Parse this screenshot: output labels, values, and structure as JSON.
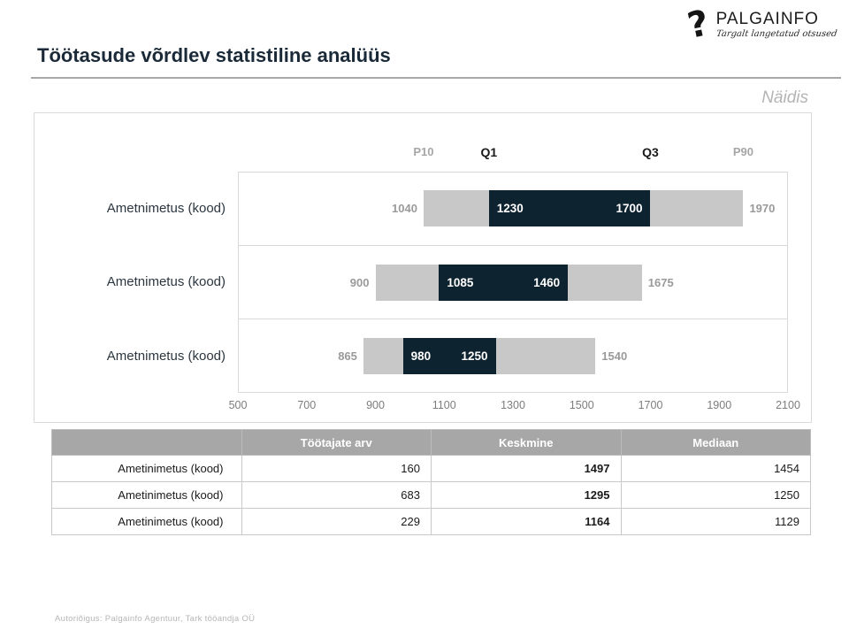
{
  "logo": {
    "name": "PALGAINFO",
    "tagline": "Targalt langetatud otsused"
  },
  "header": {
    "title": "Töötasude võrdlev statistiline analüüs"
  },
  "watermark": "Näidis",
  "chart_data": {
    "type": "bar",
    "variant": "horizontal percentile range bars (P10–Q1–Q3–P90)",
    "categories": [
      "Ametnimetus (kood)",
      "Ametnimetus (kood)",
      "Ametnimetus (kood)"
    ],
    "series": [
      {
        "name": "P10",
        "values": [
          1040,
          900,
          865
        ]
      },
      {
        "name": "Q1",
        "values": [
          1230,
          1085,
          980
        ]
      },
      {
        "name": "Q3",
        "values": [
          1700,
          1460,
          1250
        ]
      },
      {
        "name": "P90",
        "values": [
          1970,
          1675,
          1540
        ]
      }
    ],
    "header_labels": [
      {
        "text": "P10",
        "emphasis": false
      },
      {
        "text": "Q1",
        "emphasis": true
      },
      {
        "text": "Q3",
        "emphasis": true
      },
      {
        "text": "P90",
        "emphasis": false
      }
    ],
    "xlim": [
      500,
      2100
    ],
    "x_ticks": [
      500,
      700,
      900,
      1100,
      1300,
      1500,
      1700,
      1900,
      2100
    ],
    "grid": "row separators only",
    "legend": "none",
    "colors": {
      "outer_range": "#c8c8c8",
      "inner_range": "#0e2330",
      "inner_label_text": "#ffffff",
      "outer_label_text": "#9a9a9a"
    }
  },
  "table": {
    "headers": [
      "",
      "Töötajate arv",
      "Keskmine",
      "Mediaan"
    ],
    "rows": [
      {
        "label": "Ametinimetus (kood)",
        "count": "160",
        "mean": "1497",
        "median": "1454"
      },
      {
        "label": "Ametinimetus (kood)",
        "count": "683",
        "mean": "1295",
        "median": "1250"
      },
      {
        "label": "Ametinimetus (kood)",
        "count": "229",
        "mean": "1164",
        "median": "1129"
      }
    ]
  },
  "footer": {
    "copyright": "Autoriõigus: Palgainfo Agentuur, Tark tööandja OÜ"
  }
}
